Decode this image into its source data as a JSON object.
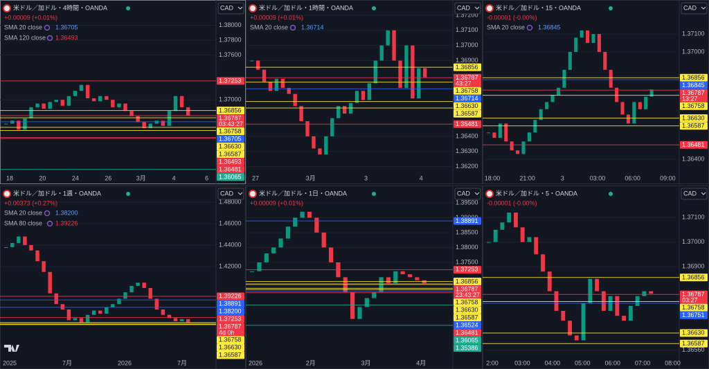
{
  "panels": [
    {
      "title": "米ドル／加ドル・4時間・OANDA",
      "change": "+0.00009 (+0.01%)",
      "currency": "CAD",
      "indicators": [
        {
          "name": "SMA 20 close",
          "value": "1.36705",
          "color": "#5b9cf6"
        },
        {
          "name": "SMA 120 close",
          "value": "1.36493",
          "color": "#f23645"
        }
      ],
      "ylim": [
        1.3596,
        1.3834
      ],
      "yticks": [
        {
          "value": 1.38,
          "label": "1.38000"
        },
        {
          "value": 1.378,
          "label": "1.37800"
        },
        {
          "value": 1.376,
          "label": "1.37600"
        },
        {
          "value": 1.37,
          "label": "1.37000"
        }
      ],
      "xticks": [
        "18",
        "20",
        "24",
        "26",
        "3月",
        "4",
        "6"
      ],
      "closes": [
        1.3668,
        1.3672,
        1.366,
        1.3675,
        1.369,
        1.3695,
        1.3688,
        1.3697,
        1.37,
        1.3692,
        1.3705,
        1.3712,
        1.372,
        1.3702,
        1.3698,
        1.3705,
        1.37,
        1.369,
        1.3695,
        1.3685,
        1.3678,
        1.367,
        1.3662,
        1.3668,
        1.3672,
        1.3665,
        1.3685,
        1.3705,
        1.369,
        1.3679
      ],
      "price_levels": [
        {
          "value": 1.37253,
          "label": "1.37253",
          "color": "#f23645"
        },
        {
          "value": 1.36856,
          "label": "1.36856",
          "color": "#ffeb3b"
        },
        {
          "value": 1.36787,
          "label": "1.36787",
          "color": "#f23645",
          "countdown": "03:43:27"
        },
        {
          "value": 1.36758,
          "label": "1.36758",
          "color": "#ffeb3b"
        },
        {
          "value": 1.36705,
          "label": "1.36705",
          "color": "#2962ff"
        },
        {
          "value": 1.3663,
          "label": "1.36630",
          "color": "#ffeb3b"
        },
        {
          "value": 1.36587,
          "label": "1.36587",
          "color": "#ffeb3b"
        },
        {
          "value": 1.36493,
          "label": "1.36493",
          "color": "#f23645"
        },
        {
          "value": 1.36481,
          "label": "1.36481",
          "color": "#f23645"
        },
        {
          "value": 1.36065,
          "label": "1.36065",
          "color": "#22ab94"
        }
      ]
    },
    {
      "title": "米ドル／加ドル・1時間・OANDA",
      "change": "+0.00009 (+0.01%)",
      "currency": "CAD",
      "indicators": [
        {
          "name": "SMA 20 close",
          "value": "1.36714",
          "color": "#5b9cf6"
        }
      ],
      "ylim": [
        1.3613,
        1.373
      ],
      "yticks": [
        {
          "value": 1.372,
          "label": "1.37200"
        },
        {
          "value": 1.371,
          "label": "1.37100"
        },
        {
          "value": 1.37,
          "label": "1.37000"
        },
        {
          "value": 1.369,
          "label": "1.36900"
        },
        {
          "value": 1.364,
          "label": "1.36400"
        },
        {
          "value": 1.363,
          "label": "1.36300"
        },
        {
          "value": 1.362,
          "label": "1.36200"
        }
      ],
      "xticks": [
        "27",
        "3月",
        "3",
        "4"
      ],
      "closes": [
        1.369,
        1.3684,
        1.3676,
        1.367,
        1.3678,
        1.3672,
        1.3668,
        1.366,
        1.365,
        1.364,
        1.3632,
        1.3628,
        1.364,
        1.3652,
        1.366,
        1.3655,
        1.3662,
        1.367,
        1.3664,
        1.3675,
        1.369,
        1.37,
        1.371,
        1.369,
        1.3672,
        1.37,
        1.3665,
        1.3685,
        1.3679
      ],
      "price_levels": [
        {
          "value": 1.36856,
          "label": "1.36856",
          "color": "#ffeb3b"
        },
        {
          "value": 1.36787,
          "label": "1.36787",
          "color": "#f23645",
          "countdown": "43:27"
        },
        {
          "value": 1.36758,
          "label": "1.36758",
          "color": "#ffeb3b"
        },
        {
          "value": 1.36714,
          "label": "1.36714",
          "color": "#2962ff"
        },
        {
          "value": 1.3663,
          "label": "1.36630",
          "color": "#ffeb3b"
        },
        {
          "value": 1.36587,
          "label": "1.36587",
          "color": "#ffeb3b"
        },
        {
          "value": 1.36481,
          "label": "1.36481",
          "color": "#f23645"
        }
      ]
    },
    {
      "title": "米ドル／加ドル・15・OANDA",
      "change": "-0.00001 (-0.00%)",
      "currency": "CAD",
      "indicators": [
        {
          "name": "SMA 20 close",
          "value": "1.36845",
          "color": "#5b9cf6"
        }
      ],
      "ylim": [
        1.363,
        1.3729
      ],
      "yticks": [
        {
          "value": 1.371,
          "label": "1.37100"
        },
        {
          "value": 1.37,
          "label": "1.37000"
        },
        {
          "value": 1.364,
          "label": "1.36400"
        }
      ],
      "xticks": [
        "18:00",
        "21:00",
        "3",
        "03:00",
        "06:00",
        "09:00"
      ],
      "closes": [
        1.3655,
        1.3652,
        1.366,
        1.365,
        1.3645,
        1.3643,
        1.365,
        1.3655,
        1.3662,
        1.3668,
        1.3672,
        1.3676,
        1.368,
        1.369,
        1.37,
        1.3708,
        1.3712,
        1.3705,
        1.371,
        1.37,
        1.369,
        1.368,
        1.3672,
        1.3665,
        1.366,
        1.3672,
        1.3668,
        1.3675,
        1.3679
      ],
      "price_levels": [
        {
          "value": 1.36856,
          "label": "1.36856",
          "color": "#ffeb3b"
        },
        {
          "value": 1.36845,
          "label": "1.36845",
          "color": "#2962ff"
        },
        {
          "value": 1.36787,
          "label": "1.36787",
          "color": "#f23645",
          "countdown": "13:27"
        },
        {
          "value": 1.36758,
          "label": "1.36758",
          "color": "#ffeb3b"
        },
        {
          "value": 1.3663,
          "label": "1.36630",
          "color": "#ffeb3b"
        },
        {
          "value": 1.36587,
          "label": "1.36587",
          "color": "#ffeb3b"
        },
        {
          "value": 1.36481,
          "label": "1.36481",
          "color": "#f23645"
        }
      ]
    },
    {
      "title": "米ドル／加ドル・1週・OANDA",
      "change": "+0.00373 (+0.27%)",
      "currency": "CAD",
      "indicators": [
        {
          "name": "SMA 20 close",
          "value": "1.38200",
          "color": "#5b9cf6"
        },
        {
          "name": "SMA 80 close",
          "value": "1.39226",
          "color": "#f23645"
        }
      ],
      "ylim": [
        1.3329,
        1.4955
      ],
      "yticks": [
        {
          "value": 1.48,
          "label": "1.48000"
        },
        {
          "value": 1.46,
          "label": "1.46000"
        },
        {
          "value": 1.44,
          "label": "1.44000"
        },
        {
          "value": 1.42,
          "label": "1.42000"
        }
      ],
      "xticks": [
        "2025",
        "7月",
        "2026",
        "7月"
      ],
      "closes": [
        1.438,
        1.442,
        1.448,
        1.44,
        1.435,
        1.425,
        1.415,
        1.395,
        1.385,
        1.38,
        1.37,
        1.372,
        1.368,
        1.375,
        1.379,
        1.376,
        1.382,
        1.385,
        1.39,
        1.396,
        1.402,
        1.405,
        1.4,
        1.39,
        1.38,
        1.375,
        1.372,
        1.369,
        1.371,
        1.3679
      ],
      "price_levels": [
        {
          "value": 1.39226,
          "label": "1.39226",
          "color": "#f23645"
        },
        {
          "value": 1.38891,
          "label": "1.38891",
          "color": "#2962ff"
        },
        {
          "value": 1.382,
          "label": "1.38200",
          "color": "#2962ff"
        },
        {
          "value": 1.37253,
          "label": "1.37253",
          "color": "#f23645"
        },
        {
          "value": 1.36787,
          "label": "1.36787",
          "color": "#f23645",
          "countdown": "4d 0h"
        },
        {
          "value": 1.36758,
          "label": "1.36758",
          "color": "#ffeb3b"
        },
        {
          "value": 1.3663,
          "label": "1.36630",
          "color": "#ffeb3b"
        },
        {
          "value": 1.36587,
          "label": "1.36587",
          "color": "#ffeb3b"
        }
      ]
    },
    {
      "title": "米ドル／加ドル・1日・OANDA",
      "change": "+0.00009 (+0.01%)",
      "currency": "CAD",
      "indicators": [],
      "ylim": [
        1.3422,
        1.4008
      ],
      "yticks": [
        {
          "value": 1.395,
          "label": "1.39500"
        },
        {
          "value": 1.39,
          "label": "1.39000"
        },
        {
          "value": 1.385,
          "label": "1.38500"
        },
        {
          "value": 1.38,
          "label": "1.38000"
        },
        {
          "value": 1.375,
          "label": "1.37500"
        }
      ],
      "xticks": [
        "2026",
        "2月",
        "3月",
        "4月"
      ],
      "closes": [
        1.372,
        1.375,
        1.378,
        1.38,
        1.383,
        1.387,
        1.39,
        1.392,
        1.39,
        1.385,
        1.38,
        1.375,
        1.37,
        1.365,
        1.356,
        1.36,
        1.363,
        1.365,
        1.37,
        1.368,
        1.372,
        1.371,
        1.37,
        1.369,
        1.3679
      ],
      "price_levels": [
        {
          "value": 1.38891,
          "label": "1.38891",
          "color": "#2962ff"
        },
        {
          "value": 1.37253,
          "label": "1.37253",
          "color": "#f23645"
        },
        {
          "value": 1.36856,
          "label": "1.36856",
          "color": "#ffeb3b"
        },
        {
          "value": 1.36787,
          "label": "1.36787",
          "color": "#f23645",
          "countdown": "23:43:27"
        },
        {
          "value": 1.36758,
          "label": "1.36758",
          "color": "#ffeb3b"
        },
        {
          "value": 1.3663,
          "label": "1.36630",
          "color": "#ffeb3b"
        },
        {
          "value": 1.36587,
          "label": "1.36587",
          "color": "#ffeb3b"
        },
        {
          "value": 1.36524,
          "label": "1.36524",
          "color": "#2962ff"
        },
        {
          "value": 1.36481,
          "label": "1.36481",
          "color": "#f23645"
        },
        {
          "value": 1.36065,
          "label": "1.36065",
          "color": "#22ab94"
        },
        {
          "value": 1.35386,
          "label": "1.35386",
          "color": "#22ab94"
        }
      ]
    },
    {
      "title": "米ドル／加ドル・5・OANDA",
      "change": "-0.00001 (-0.00%)",
      "currency": "CAD",
      "indicators": [],
      "ylim": [
        1.3652,
        1.3723
      ],
      "yticks": [
        {
          "value": 1.371,
          "label": "1.37100"
        },
        {
          "value": 1.37,
          "label": "1.37000"
        },
        {
          "value": 1.369,
          "label": "1.36900"
        },
        {
          "value": 1.3656,
          "label": "1.36560"
        }
      ],
      "xticks": [
        "2:00",
        "03:00",
        "04:00",
        "05:00",
        "06:00",
        "07:00",
        "08:00"
      ],
      "closes": [
        1.37,
        1.3705,
        1.3708,
        1.3712,
        1.3706,
        1.37,
        1.3702,
        1.3695,
        1.3688,
        1.368,
        1.3672,
        1.3668,
        1.3662,
        1.366,
        1.3675,
        1.3685,
        1.368,
        1.3672,
        1.3678,
        1.367,
        1.3668,
        1.3674,
        1.3678,
        1.368,
        1.3679
      ],
      "price_levels": [
        {
          "value": 1.36856,
          "label": "1.36856",
          "color": "#ffeb3b"
        },
        {
          "value": 1.36787,
          "label": "1.36787",
          "color": "#f23645",
          "countdown": "03:27"
        },
        {
          "value": 1.36758,
          "label": "1.36758",
          "color": "#ffeb3b"
        },
        {
          "value": 1.36751,
          "label": "1.36751",
          "color": "#2962ff"
        },
        {
          "value": 1.3663,
          "label": "1.36630",
          "color": "#ffeb3b"
        },
        {
          "value": 1.36587,
          "label": "1.36587",
          "color": "#ffeb3b"
        }
      ]
    }
  ]
}
